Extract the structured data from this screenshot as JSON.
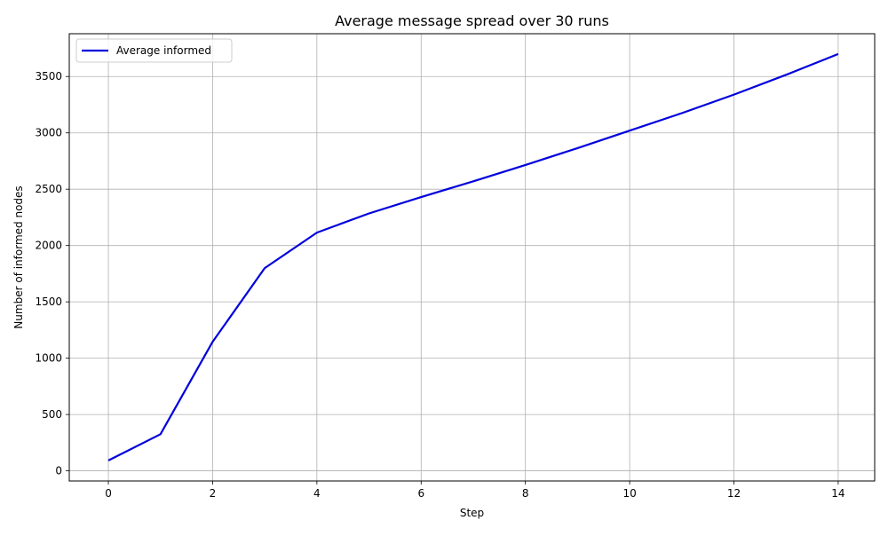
{
  "chart_data": {
    "type": "line",
    "title": "Average message spread over 30 runs",
    "xlabel": "Step",
    "ylabel": "Number of informed nodes",
    "xlim": [
      -0.75,
      14.7
    ],
    "ylim": [
      -90,
      3880
    ],
    "xticks": [
      0,
      2,
      4,
      6,
      8,
      10,
      12,
      14
    ],
    "yticks": [
      0,
      500,
      1000,
      1500,
      2000,
      2500,
      3000,
      3500
    ],
    "grid": true,
    "legend_position": "top-left",
    "series": [
      {
        "name": "Average informed",
        "color": "#0000dd",
        "x": [
          0,
          1,
          2,
          3,
          4,
          5,
          6,
          7,
          8,
          9,
          10,
          11,
          12,
          13,
          14
        ],
        "y": [
          92,
          325,
          1145,
          1800,
          2115,
          2285,
          2430,
          2570,
          2715,
          2865,
          3020,
          3175,
          3340,
          3515,
          3700
        ]
      }
    ]
  }
}
